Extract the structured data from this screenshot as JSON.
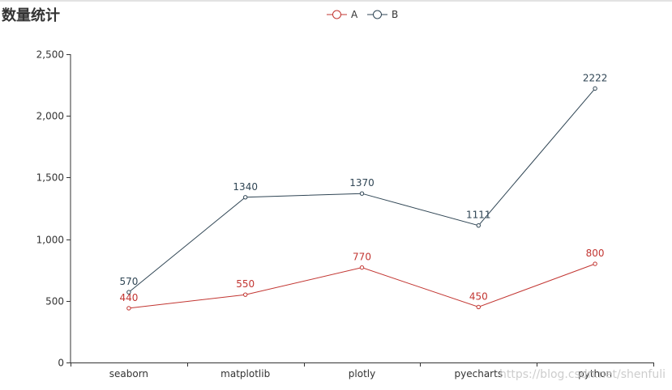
{
  "page": {
    "title": "数量统计",
    "watermark": "https://blog.csdn.net/shenfuli"
  },
  "chart_data": {
    "type": "line",
    "title": "数量统计",
    "categories": [
      "seaborn",
      "matplotlib",
      "plotly",
      "pyecharts",
      "python"
    ],
    "series": [
      {
        "name": "A",
        "values": [
          440,
          550,
          770,
          450,
          800
        ],
        "labels": [
          "440",
          "550",
          "770",
          "450",
          "800"
        ],
        "color": "#c23531"
      },
      {
        "name": "B",
        "values": [
          570,
          1340,
          1370,
          1111,
          2222
        ],
        "labels": [
          "570",
          "1340",
          "1370",
          "1111",
          "2222"
        ],
        "color": "#2f4554"
      }
    ],
    "ylim": [
      0,
      2500
    ],
    "yticks": [
      0,
      500,
      1000,
      1500,
      2000,
      2500
    ],
    "ytick_labels": [
      "0",
      "500",
      "1,000",
      "1,500",
      "2,000",
      "2,500"
    ],
    "xlabel": "",
    "ylabel": "",
    "grid": false,
    "legend_position": "top-center"
  }
}
